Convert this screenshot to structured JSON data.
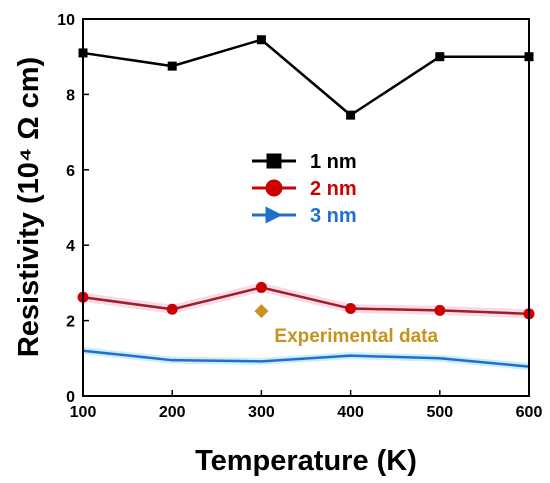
{
  "chart_data": {
    "type": "line",
    "x": [
      100,
      200,
      300,
      400,
      500,
      600
    ],
    "xlabel": "Temperature (K)",
    "ylabel": "Resistivity (10⁴ Ω cm)",
    "xlim": [
      100,
      600
    ],
    "ylim": [
      0,
      10
    ],
    "xticks": [
      "100",
      "200",
      "300",
      "400",
      "500",
      "600"
    ],
    "yticks": [
      "0",
      "2",
      "4",
      "6",
      "8",
      "10"
    ],
    "grid": false,
    "legend_position": "center",
    "series": [
      {
        "name": "1 nm",
        "color": "#000000",
        "marker": "square",
        "values": [
          9.1,
          8.75,
          9.45,
          7.45,
          9.0,
          9.0
        ]
      },
      {
        "name": "2 nm",
        "color": "#cc0000",
        "marker": "circle",
        "values": [
          2.62,
          2.3,
          2.88,
          2.32,
          2.27,
          2.18
        ]
      },
      {
        "name": "3 nm",
        "color": "#1f6fd0",
        "marker": "triangle",
        "values": [
          1.2,
          0.95,
          0.92,
          1.07,
          1.0,
          0.78
        ]
      }
    ],
    "annotations": [
      {
        "text": "Experimental data",
        "x": 300,
        "y": 2.25,
        "color": "#c8921e",
        "marker": "diamond"
      }
    ]
  }
}
